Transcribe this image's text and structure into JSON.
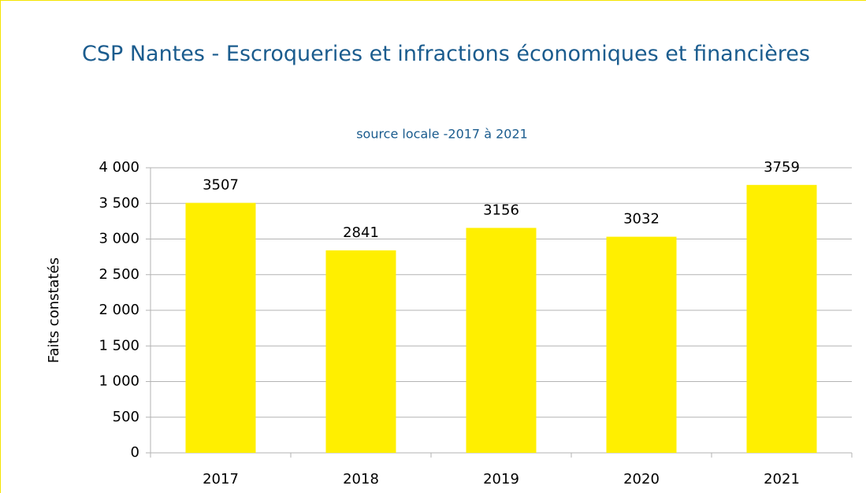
{
  "chart_data": {
    "type": "bar",
    "title": "CSP Nantes - Escroqueries et infractions économiques et financières",
    "subtitle": "source locale -2017 à 2021",
    "y_label": "Faits constatés",
    "categories": [
      "2017",
      "2018",
      "2019",
      "2020",
      "2021"
    ],
    "values": [
      3507,
      2841,
      3156,
      3032,
      3759
    ],
    "color": "#ffef00",
    "ylim": [
      0,
      4000
    ],
    "yticks": [
      0,
      500,
      {
        "value": 1000,
        "label": "1 000"
      },
      {
        "value": 1500,
        "label": "1 500"
      },
      {
        "value": 2000,
        "label": "2 000"
      },
      {
        "value": 2500,
        "label": "2 500"
      },
      {
        "value": 3000,
        "label": "3 000"
      },
      {
        "value": 3500,
        "label": "3 500"
      },
      {
        "value": 4000,
        "label": "4 000"
      }
    ],
    "grid": true
  }
}
